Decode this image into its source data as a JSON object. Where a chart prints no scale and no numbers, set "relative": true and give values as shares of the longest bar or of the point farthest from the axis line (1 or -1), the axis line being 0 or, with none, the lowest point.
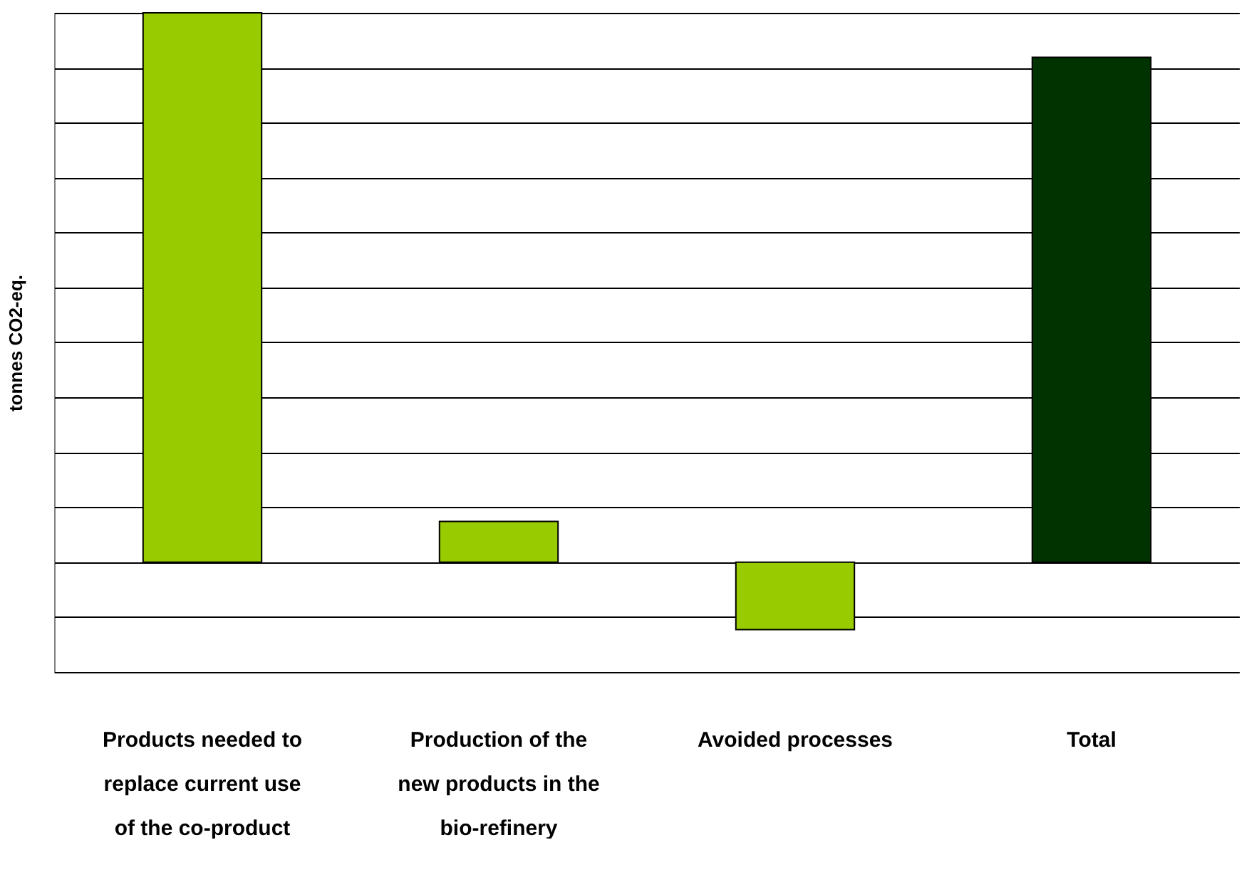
{
  "chart_data": {
    "type": "bar",
    "ylabel": "tonnes CO2-eq.",
    "relative": true,
    "grid": "y",
    "categories": [
      "Products needed to replace current use of the co-product",
      "Production of the new products in the bio-refinery",
      "Avoided processes",
      "Total"
    ],
    "values": [
      1,
      0.074,
      -0.123,
      0.919
    ],
    "colors": [
      "#99cc00",
      "#99cc00",
      "#99cc00",
      "#003300"
    ]
  }
}
